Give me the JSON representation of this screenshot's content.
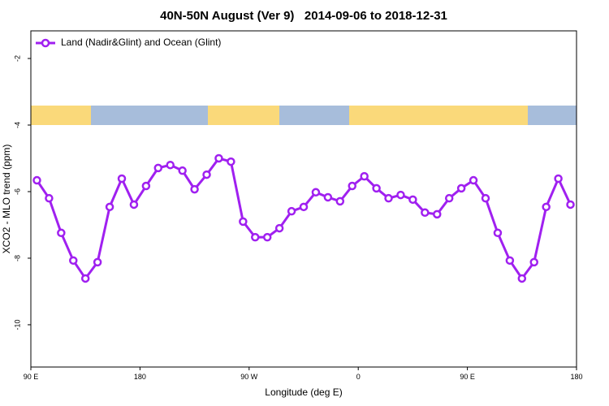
{
  "chart_data": {
    "type": "line",
    "title": "40N-50N August (Ver 9)   2014-09-06 to 2018-12-31",
    "x_label": "Longitude (deg E)",
    "y_label": "XCO2 - MLO trend (ppm)",
    "x": [
      95,
      105,
      115,
      125,
      135,
      145,
      155,
      165,
      175,
      185,
      195,
      205,
      215,
      225,
      235,
      245,
      255,
      265,
      275,
      285,
      295,
      305,
      315,
      325,
      335,
      345,
      355,
      365,
      375,
      385,
      395,
      405,
      415,
      425,
      435,
      445,
      455,
      465,
      475,
      485,
      495,
      505,
      515,
      525,
      535
    ],
    "series": [
      {
        "name": "Land (Nadir&Glint) and Ocean (Glint)",
        "color": "#a020f0",
        "values": [
          -5.66,
          -6.2,
          -7.24,
          -8.07,
          -8.61,
          -8.12,
          -6.46,
          -5.61,
          -6.39,
          -5.83,
          -5.29,
          -5.2,
          -5.37,
          -5.93,
          -5.49,
          -5.0,
          -5.1,
          -6.9,
          -7.37,
          -7.37,
          -7.1,
          -6.59,
          -6.46,
          -6.02,
          -6.17,
          -6.29,
          -5.83,
          -5.54,
          -5.9,
          -6.2,
          -6.1,
          -6.24,
          -6.63,
          -6.68,
          -6.2,
          -5.9,
          -5.66,
          -6.2,
          -7.24,
          -8.07,
          -8.61,
          -8.12,
          -6.46,
          -5.61,
          -6.39
        ]
      }
    ],
    "xlim": [
      90,
      540
    ],
    "xticks": [
      {
        "value": 90,
        "label": "90 E"
      },
      180,
      {
        "value": 270,
        "label": "90 W"
      },
      {
        "value": 360,
        "label": "0"
      },
      {
        "value": 450,
        "label": "90 E"
      },
      {
        "value": 540,
        "label": "180"
      }
    ],
    "ylim": [
      -11.27,
      -1.17
    ],
    "yticks": [
      -10,
      -8,
      -6,
      -4,
      -2
    ],
    "legend": "top-left"
  }
}
